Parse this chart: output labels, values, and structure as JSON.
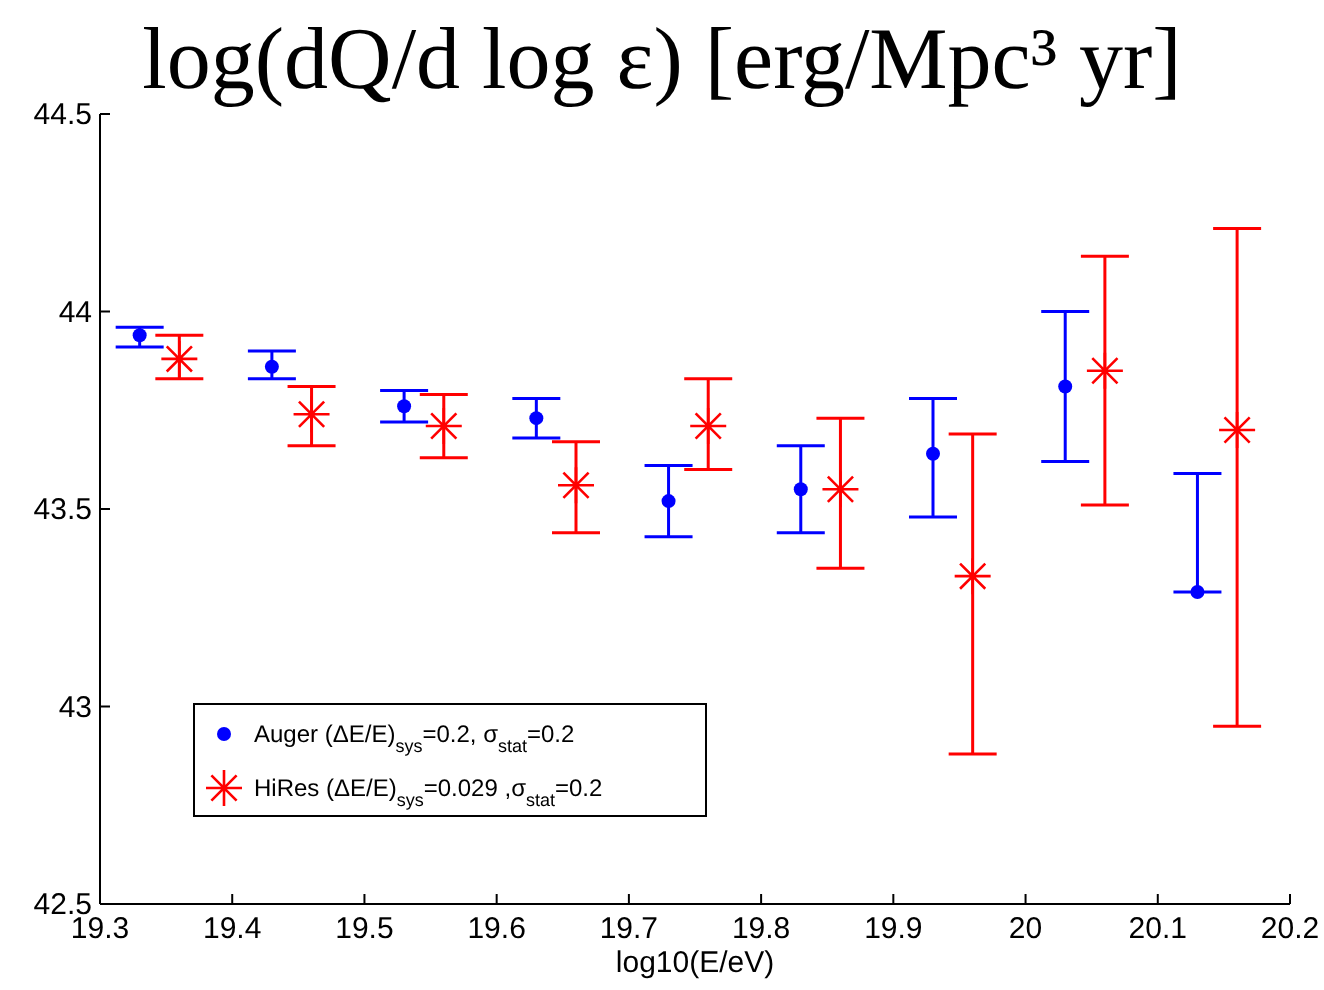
{
  "chart_data": {
    "type": "scatter",
    "title": "log(dQ/d log ε) [erg/Mpc³ yr]",
    "xlabel": "log10(E/eV)",
    "xlim": [
      19.3,
      20.2
    ],
    "xticks": [
      19.3,
      19.4,
      19.5,
      19.6,
      19.7,
      19.8,
      19.9,
      20,
      20.1,
      20.2
    ],
    "ylim": [
      42.5,
      44.5
    ],
    "yticks": [
      42.5,
      43,
      43.5,
      44,
      44.5
    ],
    "legend": "bottom left",
    "grid": false,
    "series": [
      {
        "name": "Auger (ΔE/E)$_{sys}$=0.2, σ$_{stat}$=0.2",
        "color": "#0000ff",
        "marker": "circle",
        "x": [
          19.33,
          19.43,
          19.53,
          19.63,
          19.73,
          19.83,
          19.93,
          20.03,
          20.13
        ],
        "values": [
          43.94,
          43.86,
          43.76,
          43.73,
          43.52,
          43.55,
          43.64,
          43.81,
          43.29
        ],
        "errors": [
          [
            43.91,
            43.96
          ],
          [
            43.83,
            43.9
          ],
          [
            43.72,
            43.8
          ],
          [
            43.68,
            43.78
          ],
          [
            43.43,
            43.61
          ],
          [
            43.44,
            43.66
          ],
          [
            43.48,
            43.78
          ],
          [
            43.62,
            44
          ],
          [
            43.29,
            43.59
          ]
        ]
      },
      {
        "name": "HiRes (ΔE/E)$_{sys}$=0.029 ,σ$_{stat}$=0.2",
        "color": "#ff0000",
        "marker": "cross",
        "x": [
          19.36,
          19.46,
          19.56,
          19.66,
          19.76,
          19.86,
          19.96,
          20.06,
          20.16
        ],
        "values": [
          43.88,
          43.74,
          43.71,
          43.56,
          43.71,
          43.55,
          43.33,
          43.85,
          43.7
        ],
        "errors": [
          [
            43.83,
            43.94
          ],
          [
            43.66,
            43.81
          ],
          [
            43.63,
            43.79
          ],
          [
            43.44,
            43.67
          ],
          [
            43.6,
            43.83
          ],
          [
            43.35,
            43.73
          ],
          [
            42.88,
            43.69
          ],
          [
            43.51,
            44.14
          ],
          [
            42.95,
            44.21
          ]
        ]
      }
    ]
  }
}
